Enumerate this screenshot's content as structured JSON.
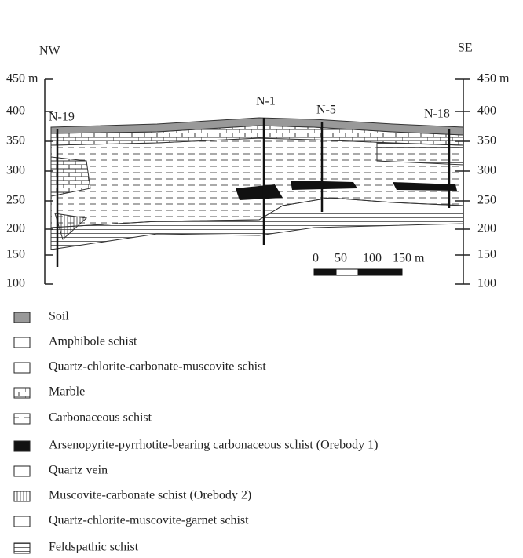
{
  "header": {
    "left": "NW",
    "right": "SE"
  },
  "axis": {
    "left": [
      "450 m",
      "400",
      "350",
      "300",
      "250",
      "200",
      "150",
      "100"
    ],
    "right": [
      "450 m",
      "400",
      "350",
      "300",
      "250",
      "200",
      "150",
      "100"
    ]
  },
  "wells": [
    "N-19",
    "N-1",
    "N-5",
    "N-18"
  ],
  "scale": [
    "0",
    "50",
    "100",
    "150 m"
  ],
  "legend": [
    "Soil",
    "Amphibole schist",
    "Quartz-chlorite-carbonate-muscovite schist",
    "Marble",
    "Carbonaceous schist",
    "Arsenopyrite-pyrrhotite-bearing carbonaceous schist (Orebody 1)",
    "Quartz vein",
    "Muscovite-carbonate schist (Orebody 2)",
    "Quartz-chlorite-muscovite-garnet schist",
    "Feldspathic schist"
  ]
}
